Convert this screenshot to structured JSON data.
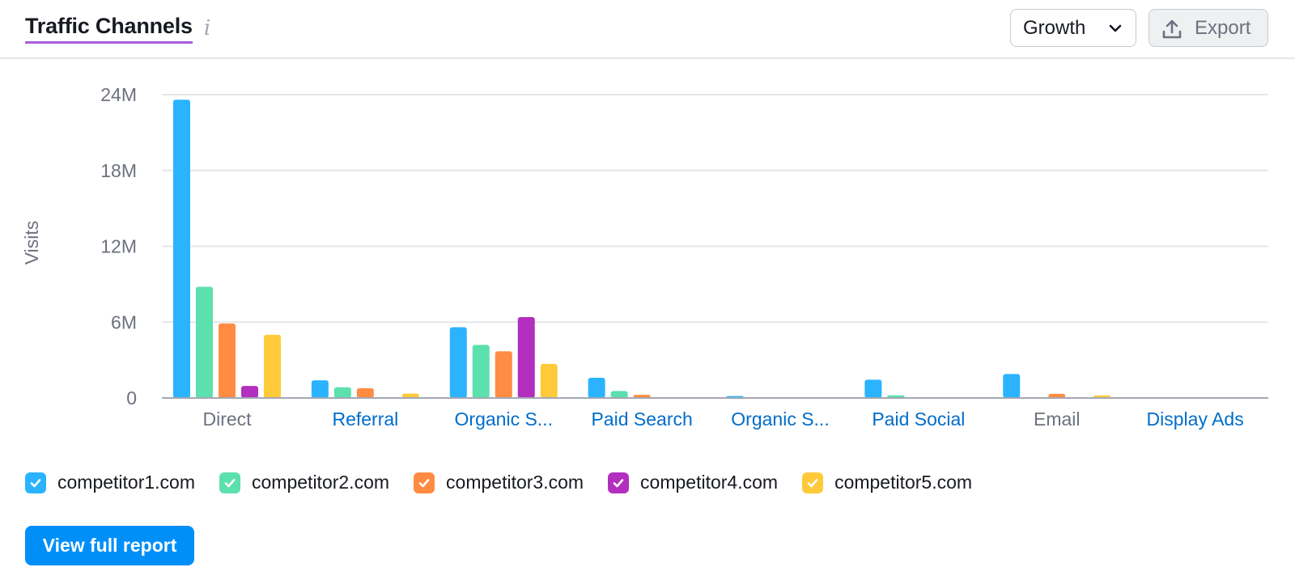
{
  "header": {
    "title": "Traffic Channels",
    "info_icon": "i",
    "dropdown_value": "Growth",
    "export_label": "Export"
  },
  "chart_data": {
    "type": "bar",
    "ylabel": "Visits",
    "ylim": [
      0,
      24000000
    ],
    "yticks": [
      0,
      6000000,
      12000000,
      18000000,
      24000000
    ],
    "ytick_labels": [
      "0",
      "6M",
      "12M",
      "18M",
      "24M"
    ],
    "grid": true,
    "categories": [
      "Direct",
      "Referral",
      "Organic S...",
      "Paid Search",
      "Organic S...",
      "Paid Social",
      "Email",
      "Display Ads"
    ],
    "category_link": [
      false,
      true,
      true,
      true,
      true,
      true,
      false,
      true
    ],
    "series": [
      {
        "name": "competitor1.com",
        "color": "#2bb3ff",
        "values": [
          23600000,
          1400000,
          5600000,
          1600000,
          150000,
          1450000,
          1900000,
          50000
        ]
      },
      {
        "name": "competitor2.com",
        "color": "#5ce0ad",
        "values": [
          8800000,
          850000,
          4200000,
          550000,
          30000,
          220000,
          30000,
          20000
        ]
      },
      {
        "name": "competitor3.com",
        "color": "#ff8c42",
        "values": [
          5900000,
          780000,
          3700000,
          250000,
          30000,
          50000,
          330000,
          20000
        ]
      },
      {
        "name": "competitor4.com",
        "color": "#b22fbf",
        "values": [
          950000,
          40000,
          6400000,
          30000,
          20000,
          40000,
          30000,
          10000
        ]
      },
      {
        "name": "competitor5.com",
        "color": "#ffca3a",
        "values": [
          5000000,
          350000,
          2700000,
          60000,
          20000,
          40000,
          200000,
          10000
        ]
      }
    ],
    "legend_position": "bottom-left"
  },
  "colors": {
    "link": "#006dca",
    "axis_text": "#6c727f",
    "grid": "#e4e6ea",
    "accent": "#a75ee0",
    "button": "#008ff8"
  },
  "footer": {
    "view_report_label": "View full report"
  }
}
